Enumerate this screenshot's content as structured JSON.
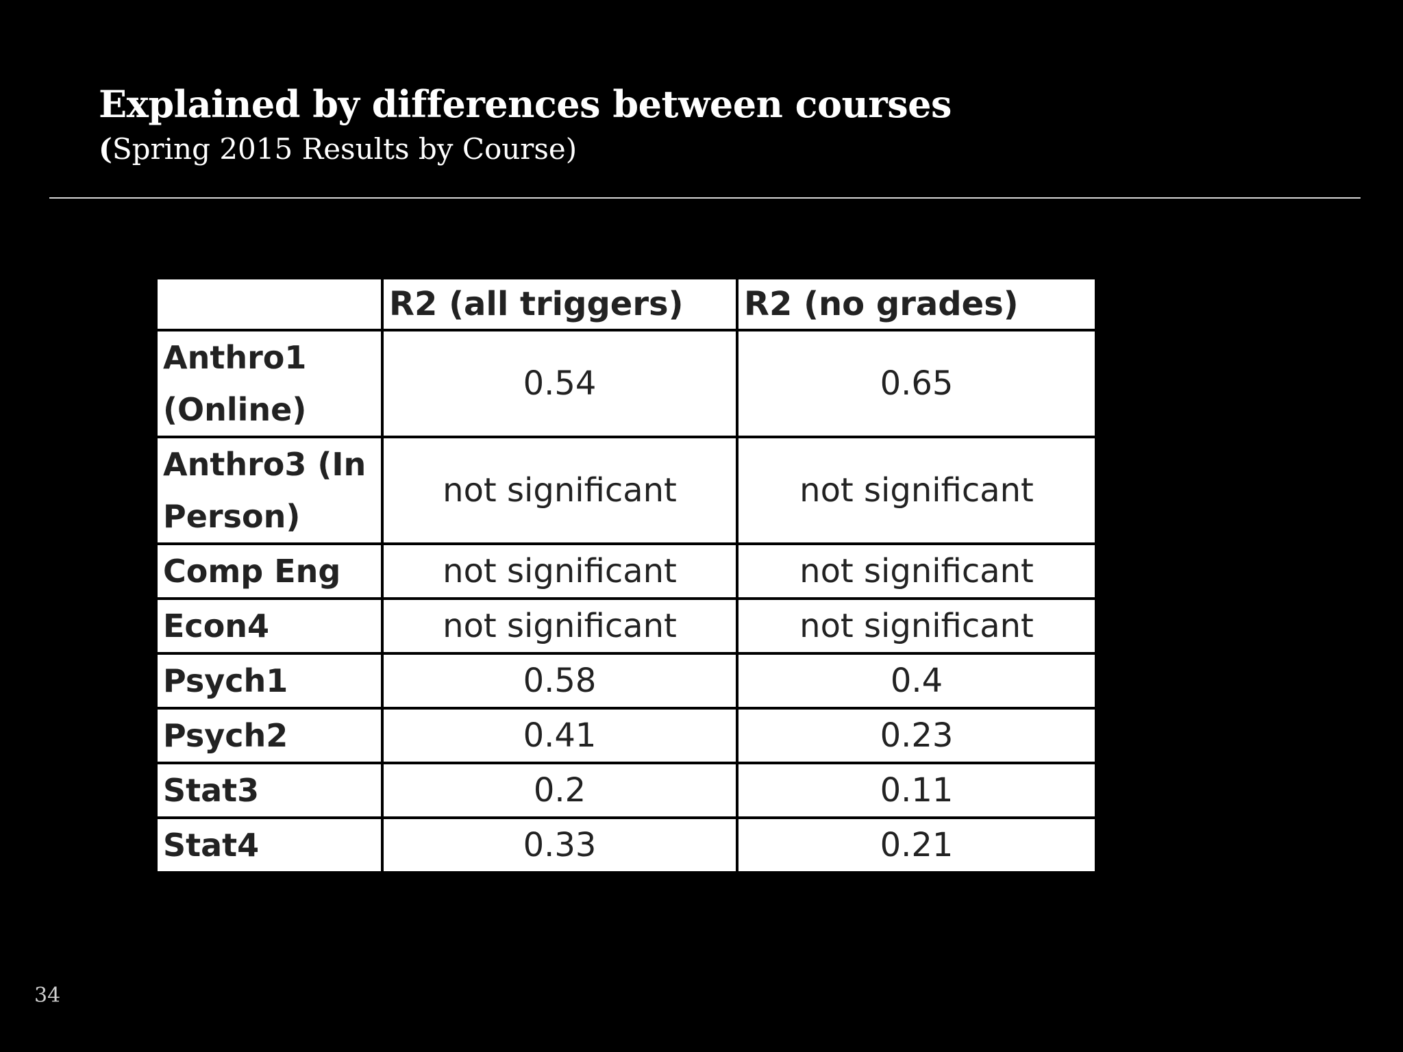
{
  "slide": {
    "title": "Explained by differences between courses",
    "subtitle_paren": "(",
    "subtitle_text": "Spring 2015 Results by Course)",
    "page_number": "34"
  },
  "table": {
    "headers": [
      "",
      "R2 (all triggers)",
      "R2 (no grades)"
    ],
    "rows": [
      {
        "course": "Anthro1 (Online)",
        "all_triggers": "0.54",
        "no_grades": "0.65"
      },
      {
        "course": "Anthro3 (In Person)",
        "all_triggers": "not significant",
        "no_grades": "not significant"
      },
      {
        "course": "Comp Eng",
        "all_triggers": "not significant",
        "no_grades": "not significant"
      },
      {
        "course": "Econ4",
        "all_triggers": "not significant",
        "no_grades": "not significant"
      },
      {
        "course": "Psych1",
        "all_triggers": "0.58",
        "no_grades": "0.4"
      },
      {
        "course": "Psych2",
        "all_triggers": "0.41",
        "no_grades": "0.23"
      },
      {
        "course": "Stat3",
        "all_triggers": "0.2",
        "no_grades": "0.11"
      },
      {
        "course": "Stat4",
        "all_triggers": "0.33",
        "no_grades": "0.21"
      }
    ]
  }
}
